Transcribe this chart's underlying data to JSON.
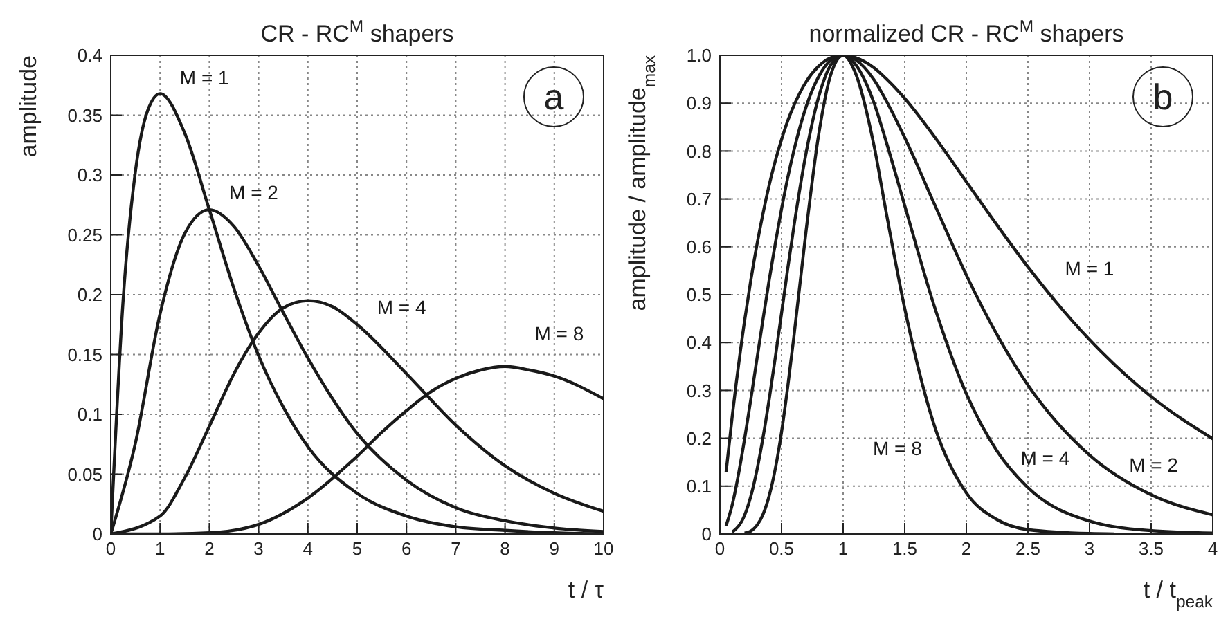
{
  "chart_data": [
    {
      "type": "line",
      "title": "CR - RC$^{M}$ shapers",
      "xlabel": "t / τ",
      "ylabel": "amplitude",
      "xlim": [
        0,
        10
      ],
      "ylim": [
        0,
        0.4
      ],
      "xticks": [
        0,
        1,
        2,
        3,
        4,
        5,
        6,
        7,
        8,
        9,
        10
      ],
      "yticks": [
        0,
        0.05,
        0.1,
        0.15,
        0.2,
        0.25,
        0.3,
        0.35,
        0.4
      ],
      "grid": true,
      "legend": false,
      "marker": "none",
      "line_style": "solid",
      "series": [
        {
          "name": "M = 1",
          "color": "#1a1a1a",
          "x": [
            0,
            0.25,
            0.5,
            0.75,
            1,
            1.5,
            2,
            2.5,
            3,
            3.5,
            4,
            5,
            6,
            7,
            8,
            9,
            10
          ],
          "values": [
            0,
            0.195,
            0.303,
            0.354,
            0.368,
            0.335,
            0.271,
            0.205,
            0.149,
            0.106,
            0.073,
            0.034,
            0.015,
            0.006,
            0.003,
            0.001,
            0
          ]
        },
        {
          "name": "M = 2",
          "color": "#1a1a1a",
          "x": [
            0,
            0.5,
            1,
            1.5,
            2,
            2.5,
            3,
            3.5,
            4,
            5,
            6,
            7,
            8,
            9,
            10
          ],
          "values": [
            0,
            0.076,
            0.184,
            0.251,
            0.271,
            0.257,
            0.224,
            0.185,
            0.147,
            0.084,
            0.045,
            0.022,
            0.011,
            0.005,
            0.002
          ]
        },
        {
          "name": "M = 4",
          "color": "#1a1a1a",
          "x": [
            0,
            1,
            1.5,
            2,
            2.5,
            3,
            3.5,
            4,
            4.5,
            5,
            6,
            7,
            8,
            9,
            10
          ],
          "values": [
            0,
            0.015,
            0.047,
            0.09,
            0.134,
            0.168,
            0.189,
            0.195,
            0.19,
            0.175,
            0.134,
            0.091,
            0.057,
            0.034,
            0.019
          ]
        },
        {
          "name": "M = 8",
          "color": "#1a1a1a",
          "x": [
            0,
            1,
            2,
            3,
            4,
            5,
            5.5,
            6,
            6.5,
            7,
            7.5,
            8,
            8.5,
            9,
            10
          ],
          "values": [
            0,
            0,
            0.001,
            0.008,
            0.03,
            0.065,
            0.085,
            0.103,
            0.119,
            0.13,
            0.137,
            0.14,
            0.137,
            0.132,
            0.113
          ]
        }
      ],
      "annotations": [
        "a"
      ]
    },
    {
      "type": "line",
      "title": "normalized CR - RC$^{M}$ shapers",
      "xlabel": "t / t$_{peak}$",
      "ylabel": "amplitude / amplitude$_{max}$",
      "xlim": [
        0,
        4
      ],
      "ylim": [
        0,
        1
      ],
      "xticks": [
        0,
        0.5,
        1,
        1.5,
        2,
        2.5,
        3,
        3.5,
        4
      ],
      "yticks": [
        0,
        0.1,
        0.2,
        0.3,
        0.4,
        0.5,
        0.6,
        0.7,
        0.8,
        0.9,
        {
          "value": 1,
          "label": "1.0"
        }
      ],
      "grid": true,
      "legend": false,
      "marker": "none",
      "line_style": "solid",
      "series": [
        {
          "name": "M = 1",
          "color": "#1a1a1a",
          "x": [
            0.05,
            0.1,
            0.2,
            0.25,
            0.3,
            0.35,
            0.4,
            0.45,
            0.5,
            0.55,
            0.6,
            0.7,
            0.8,
            0.9,
            1,
            1.1,
            1.25,
            1.35,
            1.5,
            1.75,
            2,
            2.25,
            2.5,
            3,
            3.5,
            4
          ],
          "values": [
            0.129,
            0.246,
            0.445,
            0.529,
            0.604,
            0.67,
            0.729,
            0.78,
            0.824,
            0.863,
            0.895,
            0.945,
            0.977,
            0.995,
            1,
            0.995,
            0.974,
            0.951,
            0.91,
            0.827,
            0.736,
            0.645,
            0.558,
            0.406,
            0.287,
            0.199
          ]
        },
        {
          "name": "M = 2",
          "color": "#1a1a1a",
          "x": [
            0.05,
            0.1,
            0.2,
            0.25,
            0.3,
            0.35,
            0.4,
            0.45,
            0.5,
            0.55,
            0.6,
            0.7,
            0.8,
            0.9,
            1,
            1.1,
            1.25,
            1.35,
            1.5,
            1.75,
            2,
            2.25,
            2.5,
            3,
            3.5,
            4
          ],
          "values": [
            0.017,
            0.061,
            0.198,
            0.28,
            0.365,
            0.449,
            0.531,
            0.608,
            0.679,
            0.744,
            0.801,
            0.893,
            0.955,
            0.99,
            1,
            0.991,
            0.949,
            0.905,
            0.828,
            0.684,
            0.541,
            0.416,
            0.311,
            0.165,
            0.082,
            0.04
          ]
        },
        {
          "name": "M = 4",
          "color": "#1a1a1a",
          "x": [
            0.1,
            0.2,
            0.25,
            0.3,
            0.35,
            0.4,
            0.45,
            0.5,
            0.55,
            0.6,
            0.7,
            0.8,
            0.9,
            1,
            1.1,
            1.25,
            1.35,
            1.5,
            1.75,
            2,
            2.25,
            2.5,
            3,
            3.5,
            4
          ],
          "values": [
            0.004,
            0.039,
            0.078,
            0.133,
            0.202,
            0.282,
            0.37,
            0.461,
            0.554,
            0.642,
            0.797,
            0.912,
            0.98,
            1,
            0.981,
            0.901,
            0.819,
            0.686,
            0.468,
            0.293,
            0.173,
            0.097,
            0.027,
            0.007,
            0.002
          ]
        },
        {
          "name": "M = 8",
          "color": "#1a1a1a",
          "x": [
            0.2,
            0.25,
            0.3,
            0.35,
            0.4,
            0.45,
            0.5,
            0.55,
            0.6,
            0.7,
            0.8,
            0.9,
            1,
            1.1,
            1.25,
            1.35,
            1.5,
            1.75,
            2,
            2.25,
            2.5,
            3,
            3.2
          ],
          "values": [
            0.002,
            0.006,
            0.018,
            0.041,
            0.08,
            0.137,
            0.213,
            0.307,
            0.412,
            0.635,
            0.832,
            0.96,
            1,
            0.963,
            0.812,
            0.671,
            0.471,
            0.219,
            0.086,
            0.03,
            0.009,
            0.001,
            0
          ]
        }
      ],
      "annotations": [
        "b"
      ]
    }
  ]
}
